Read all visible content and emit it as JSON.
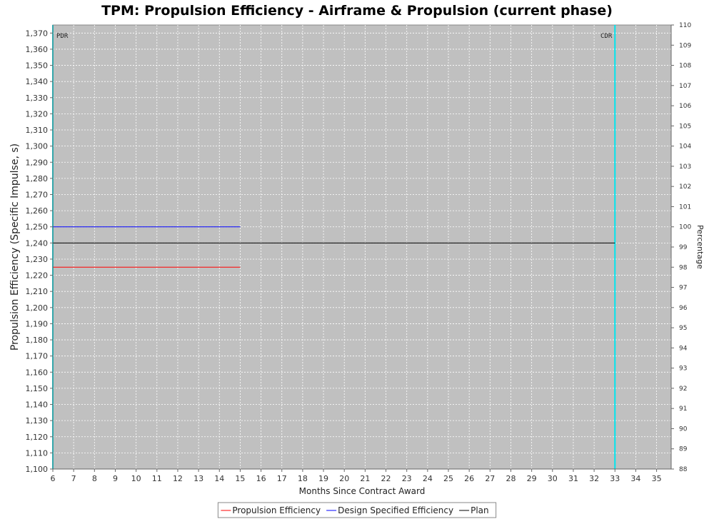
{
  "chart_data": {
    "type": "line",
    "title": "TPM: Propulsion Efficiency - Airframe & Propulsion (current phase)",
    "xlabel": "Months Since Contract Award",
    "ylabel": "Propulsion Efficiency (Specific Impulse, s)",
    "y2label": "Percentage",
    "xlim": [
      6,
      35.7
    ],
    "ylim": [
      1100,
      1375
    ],
    "y2lim": [
      88,
      110
    ],
    "x_ticks": [
      6,
      7,
      8,
      9,
      10,
      11,
      12,
      13,
      14,
      15,
      16,
      17,
      18,
      19,
      20,
      21,
      22,
      23,
      24,
      25,
      26,
      27,
      28,
      29,
      30,
      31,
      32,
      33,
      34,
      35
    ],
    "y_ticks": [
      1100,
      1110,
      1120,
      1130,
      1140,
      1150,
      1160,
      1170,
      1180,
      1190,
      1200,
      1210,
      1220,
      1230,
      1240,
      1250,
      1260,
      1270,
      1280,
      1290,
      1300,
      1310,
      1320,
      1330,
      1340,
      1350,
      1360,
      1370
    ],
    "y_tick_labels": [
      "1,100",
      "1,110",
      "1,120",
      "1,130",
      "1,140",
      "1,150",
      "1,160",
      "1,170",
      "1,180",
      "1,190",
      "1,200",
      "1,210",
      "1,220",
      "1,230",
      "1,240",
      "1,250",
      "1,260",
      "1,270",
      "1,280",
      "1,290",
      "1,300",
      "1,310",
      "1,320",
      "1,330",
      "1,340",
      "1,350",
      "1,360",
      "1,370"
    ],
    "y2_ticks": [
      88,
      89,
      90,
      91,
      92,
      93,
      94,
      95,
      96,
      97,
      98,
      99,
      100,
      101,
      102,
      103,
      104,
      105,
      106,
      107,
      108,
      109,
      110
    ],
    "grid": true,
    "legend_position": "bottom-center",
    "series": [
      {
        "name": "Propulsion Efficiency",
        "color": "#ff0000",
        "x": [
          6,
          15
        ],
        "y": [
          1225,
          1225
        ]
      },
      {
        "name": "Design Specified Efficiency",
        "color": "#0000ff",
        "x": [
          6,
          15
        ],
        "y": [
          1250,
          1250
        ]
      },
      {
        "name": "Plan",
        "color": "#000000",
        "x": [
          6,
          33
        ],
        "y": [
          1240,
          1240
        ]
      }
    ],
    "markers": [
      {
        "label": "PDR",
        "x": 6,
        "color": "#00e5ee"
      },
      {
        "label": "CDR",
        "x": 33,
        "color": "#00e5ee"
      }
    ]
  }
}
